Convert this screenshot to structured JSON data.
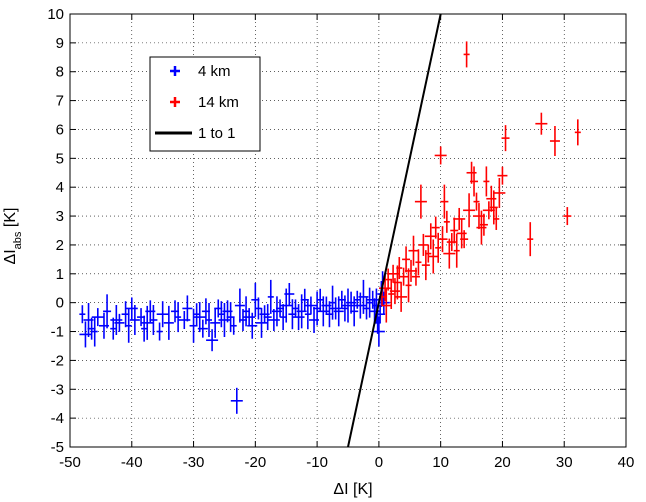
{
  "chart_data": {
    "type": "scatter",
    "xlabel": "ΔI [K]",
    "ylabel_main": "ΔI",
    "ylabel_sub": "abs",
    "ylabel_unit": " [K]",
    "xlim": [
      -50,
      40
    ],
    "ylim": [
      -5,
      10
    ],
    "xticks": [
      -50,
      -40,
      -30,
      -20,
      -10,
      0,
      10,
      20,
      30,
      40
    ],
    "yticks": [
      -5,
      -4,
      -3,
      -2,
      -1,
      0,
      1,
      2,
      3,
      4,
      5,
      6,
      7,
      8,
      9,
      10
    ],
    "grid": true,
    "legend_position": "top-left",
    "series": [
      {
        "name": "4 km",
        "color": "#0000ff",
        "marker": "plus-with-errorbars",
        "points": [
          [
            -48,
            -0.4
          ],
          [
            -47.5,
            -1.1
          ],
          [
            -47,
            -0.6
          ],
          [
            -46.5,
            -0.9
          ],
          [
            -46,
            -1.0
          ],
          [
            -45.5,
            -0.5
          ],
          [
            -44.5,
            -0.8
          ],
          [
            -44,
            -0.3
          ],
          [
            -43,
            -0.9
          ],
          [
            -42.5,
            -0.6
          ],
          [
            -42,
            -0.7
          ],
          [
            -41,
            -0.4
          ],
          [
            -40.5,
            -0.8
          ],
          [
            -40,
            -0.2
          ],
          [
            -39.5,
            -0.6
          ],
          [
            -38.5,
            -0.5
          ],
          [
            -38,
            -0.9
          ],
          [
            -37.5,
            -0.7
          ],
          [
            -37,
            -0.3
          ],
          [
            -36.5,
            -0.6
          ],
          [
            -35.5,
            -1.0
          ],
          [
            -35,
            -0.4
          ],
          [
            -34,
            -0.7
          ],
          [
            -33,
            -0.3
          ],
          [
            -32.5,
            -0.5
          ],
          [
            -31.5,
            -0.6
          ],
          [
            -31,
            -0.2
          ],
          [
            -30,
            -0.8
          ],
          [
            -29.5,
            -0.4
          ],
          [
            -29,
            -0.5
          ],
          [
            -28.5,
            -0.9
          ],
          [
            -28,
            -0.3
          ],
          [
            -27.5,
            -0.6
          ],
          [
            -27,
            -1.3
          ],
          [
            -26.5,
            -0.7
          ],
          [
            -26,
            -0.2
          ],
          [
            -25.5,
            -0.4
          ],
          [
            -25,
            -0.6
          ],
          [
            -24.5,
            -0.3
          ],
          [
            -24,
            -0.5
          ],
          [
            -23.5,
            -0.8
          ],
          [
            -23,
            -3.4
          ],
          [
            -22.5,
            -0.1
          ],
          [
            -22,
            -0.6
          ],
          [
            -21.5,
            -0.3
          ],
          [
            -21,
            -0.5
          ],
          [
            -20.5,
            -0.8
          ],
          [
            -20,
            0.1
          ],
          [
            -19.5,
            -0.2
          ],
          [
            -19,
            -0.7
          ],
          [
            -18.5,
            -0.4
          ],
          [
            -18,
            -0.5
          ],
          [
            -17.5,
            0.2
          ],
          [
            -17,
            -0.6
          ],
          [
            -16.5,
            -0.3
          ],
          [
            -16,
            -0.2
          ],
          [
            -15.5,
            -0.5
          ],
          [
            -15,
            -0.1
          ],
          [
            -14.5,
            0.3
          ],
          [
            -14,
            -0.4
          ],
          [
            -13.5,
            -0.2
          ],
          [
            -13,
            -0.5
          ],
          [
            -12.5,
            -0.3
          ],
          [
            -12,
            0.1
          ],
          [
            -11.5,
            -0.4
          ],
          [
            -11,
            -0.1
          ],
          [
            -10.5,
            -0.6
          ],
          [
            -10,
            -0.2
          ],
          [
            -9.5,
            0.1
          ],
          [
            -9,
            -0.3
          ],
          [
            -8.5,
            -0.1
          ],
          [
            -8,
            -0.4
          ],
          [
            -7.5,
            0.0
          ],
          [
            -7,
            -0.2
          ],
          [
            -6.5,
            -0.3
          ],
          [
            -6,
            0.1
          ],
          [
            -5.5,
            -0.2
          ],
          [
            -5,
            -0.1
          ],
          [
            -4.5,
            0.0
          ],
          [
            -4,
            -0.3
          ],
          [
            -3.5,
            0.1
          ],
          [
            -3,
            -0.1
          ],
          [
            -2.5,
            0.2
          ],
          [
            -2,
            -0.2
          ],
          [
            -1.5,
            0.0
          ],
          [
            -1,
            0.1
          ],
          [
            -0.7,
            -0.3
          ],
          [
            -0.4,
            -0.1
          ],
          [
            -0.2,
            -0.7
          ],
          [
            0,
            -1.0
          ],
          [
            0.2,
            -0.4
          ],
          [
            0.4,
            0.3
          ],
          [
            0.6,
            0.5
          ],
          [
            0.8,
            0.0
          ]
        ]
      },
      {
        "name": "14 km",
        "color": "#ff0000",
        "marker": "plus-with-errorbars",
        "points": [
          [
            0.5,
            0.2
          ],
          [
            1,
            0.5
          ],
          [
            1.2,
            -0.1
          ],
          [
            1.5,
            0.8
          ],
          [
            2,
            0.3
          ],
          [
            2.3,
            1.0
          ],
          [
            2.6,
            0.4
          ],
          [
            3,
            0.7
          ],
          [
            3.3,
            1.2
          ],
          [
            3.6,
            0.2
          ],
          [
            4,
            0.9
          ],
          [
            4.4,
            1.5
          ],
          [
            4.8,
            0.6
          ],
          [
            5.2,
            1.1
          ],
          [
            5.6,
            1.8
          ],
          [
            6,
            0.9
          ],
          [
            6.4,
            1.4
          ],
          [
            6.8,
            3.5
          ],
          [
            7.2,
            2.0
          ],
          [
            7.6,
            1.3
          ],
          [
            8,
            1.7
          ],
          [
            8.4,
            2.3
          ],
          [
            8.8,
            1.6
          ],
          [
            9.2,
            2.6
          ],
          [
            9.6,
            1.9
          ],
          [
            10,
            5.1
          ],
          [
            10.3,
            2.2
          ],
          [
            10.6,
            3.5
          ],
          [
            11,
            2.8
          ],
          [
            11.4,
            1.7
          ],
          [
            11.8,
            2.1
          ],
          [
            12.2,
            2.5
          ],
          [
            12.6,
            1.8
          ],
          [
            13,
            2.9
          ],
          [
            13.4,
            2.4
          ],
          [
            13.8,
            2.2
          ],
          [
            14.2,
            8.6
          ],
          [
            14.6,
            3.2
          ],
          [
            15,
            4.5
          ],
          [
            15.4,
            4.2
          ],
          [
            15.8,
            3.5
          ],
          [
            16.2,
            3.0
          ],
          [
            16.6,
            2.6
          ],
          [
            17,
            2.7
          ],
          [
            17.4,
            4.2
          ],
          [
            17.8,
            3.2
          ],
          [
            18.2,
            3.6
          ],
          [
            18.6,
            3.3
          ],
          [
            19,
            2.9
          ],
          [
            19.5,
            3.8
          ],
          [
            20,
            4.4
          ],
          [
            20.5,
            5.7
          ],
          [
            24.5,
            2.2
          ],
          [
            26.3,
            6.2
          ],
          [
            28.5,
            5.6
          ],
          [
            30.5,
            3.0
          ],
          [
            32.2,
            5.9
          ]
        ]
      },
      {
        "name": "1 to 1",
        "color": "#000000",
        "type": "line",
        "points": [
          [
            -5,
            -5
          ],
          [
            10,
            10
          ]
        ]
      }
    ]
  }
}
